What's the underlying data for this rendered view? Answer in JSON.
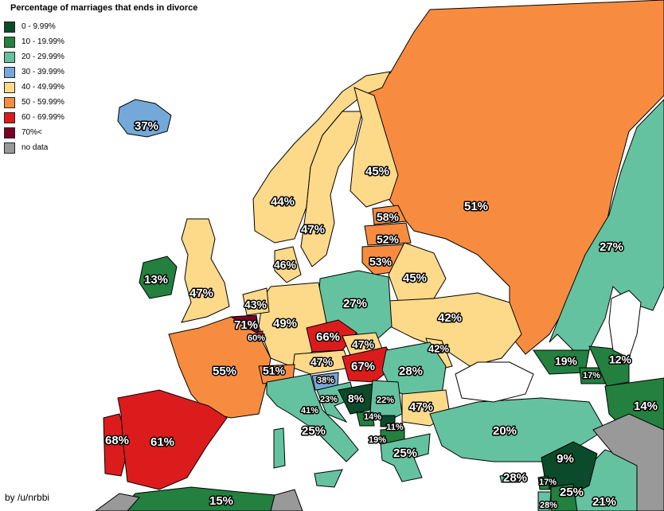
{
  "title": "Percentage of marriages that ends in divorce",
  "credit": "by /u/nrbbi",
  "legend": [
    {
      "label": "0 - 9.99%",
      "color": "#0b4a2a"
    },
    {
      "label": "10 - 19.99%",
      "color": "#23803f"
    },
    {
      "label": "20 - 29.99%",
      "color": "#64c2a0"
    },
    {
      "label": "30 - 39.99%",
      "color": "#74a8d8"
    },
    {
      "label": "40 - 49.99%",
      "color": "#fdd98a"
    },
    {
      "label": "50 - 59.99%",
      "color": "#f78c40"
    },
    {
      "label": "60 - 69.99%",
      "color": "#dc1c1c"
    },
    {
      "label": "70%<",
      "color": "#7a0026"
    },
    {
      "label": "no data",
      "color": "#999999"
    }
  ],
  "countries": [
    {
      "name": "Iceland",
      "value": "37%"
    },
    {
      "name": "Finland",
      "value": "45%"
    },
    {
      "name": "Russia",
      "value": "51%"
    },
    {
      "name": "Norway",
      "value": "44%"
    },
    {
      "name": "Sweden",
      "value": "47%"
    },
    {
      "name": "Estonia",
      "value": "58%"
    },
    {
      "name": "Latvia",
      "value": "52%"
    },
    {
      "name": "Lithuania",
      "value": "53%"
    },
    {
      "name": "Denmark",
      "value": "46%"
    },
    {
      "name": "Kazakhstan",
      "value": "27%"
    },
    {
      "name": "Ireland",
      "value": "13%"
    },
    {
      "name": "United Kingdom",
      "value": "47%"
    },
    {
      "name": "Netherlands",
      "value": "43%"
    },
    {
      "name": "Belarus",
      "value": "45%"
    },
    {
      "name": "Poland",
      "value": "27%"
    },
    {
      "name": "Germany",
      "value": "49%"
    },
    {
      "name": "Belgium",
      "value": "71%"
    },
    {
      "name": "Luxembourg",
      "value": "60%"
    },
    {
      "name": "Ukraine",
      "value": "42%"
    },
    {
      "name": "Czech Republic",
      "value": "66%"
    },
    {
      "name": "Slovakia",
      "value": "47%"
    },
    {
      "name": "Moldova",
      "value": "42%"
    },
    {
      "name": "France",
      "value": "55%"
    },
    {
      "name": "Switzerland",
      "value": "51%"
    },
    {
      "name": "Austria",
      "value": "47%"
    },
    {
      "name": "Hungary",
      "value": "67%"
    },
    {
      "name": "Romania",
      "value": "28%"
    },
    {
      "name": "Slovenia",
      "value": "38%"
    },
    {
      "name": "Croatia",
      "value": "23%"
    },
    {
      "name": "Bosnia and Herzegovina",
      "value": "8%"
    },
    {
      "name": "Serbia",
      "value": "22%"
    },
    {
      "name": "Montenegro",
      "value": "14%"
    },
    {
      "name": "Kosovo",
      "value": "11%"
    },
    {
      "name": "North Macedonia",
      "value": "19%"
    },
    {
      "name": "Bulgaria",
      "value": "47%"
    },
    {
      "name": "Italy",
      "value": "41%"
    },
    {
      "name": "Italy (south)",
      "value": "25%"
    },
    {
      "name": "Greece",
      "value": "25%"
    },
    {
      "name": "Turkey",
      "value": "20%"
    },
    {
      "name": "Georgia",
      "value": "19%"
    },
    {
      "name": "Azerbaijan",
      "value": "12%"
    },
    {
      "name": "Armenia",
      "value": "17%"
    },
    {
      "name": "Iran",
      "value": "14%"
    },
    {
      "name": "Portugal",
      "value": "68%"
    },
    {
      "name": "Spain",
      "value": "61%"
    },
    {
      "name": "Cyprus",
      "value": "28%"
    },
    {
      "name": "Syria",
      "value": "9%"
    },
    {
      "name": "Lebanon",
      "value": "17%"
    },
    {
      "name": "Jordan",
      "value": "25%"
    },
    {
      "name": "Israel",
      "value": "28%"
    },
    {
      "name": "Iraq",
      "value": "21%"
    },
    {
      "name": "Algeria",
      "value": "15%"
    }
  ]
}
